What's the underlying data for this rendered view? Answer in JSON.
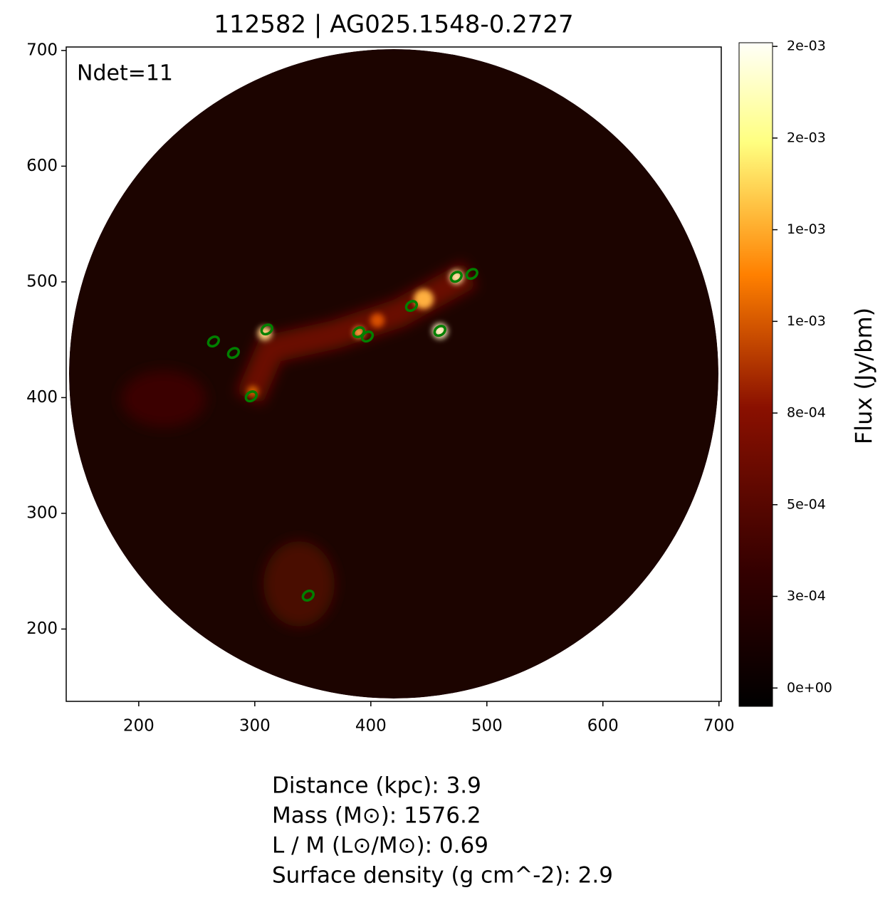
{
  "chart_data": {
    "type": "scatter",
    "title": "112582 | AG025.1548-0.2727",
    "annotation": "Ndet=11",
    "x": [
      473.6,
      487.1,
      435.0,
      459.5,
      389.6,
      397.0,
      310.4,
      264.4,
      281.6,
      296.9,
      346.0
    ],
    "values": [
      504.4,
      506.9,
      479.2,
      457.7,
      456.5,
      452.8,
      458.9,
      448.5,
      438.6,
      401.1,
      228.9
    ],
    "color": "#008000",
    "xlim": [
      137.5,
      702
    ],
    "ylim": [
      137.5,
      703
    ],
    "xticks": [
      200,
      300,
      400,
      500,
      600,
      700
    ],
    "yticks": [
      200,
      300,
      400,
      500,
      600,
      700
    ],
    "colorbar": {
      "label": "Flux (Jy/bm)",
      "lim": [
        -5e-05,
        0.00176
      ],
      "ticks": [
        {
          "value": 0,
          "label": "0e+00"
        },
        {
          "value": 0.00025,
          "label": "3e-04"
        },
        {
          "value": 0.0005,
          "label": "5e-04"
        },
        {
          "value": 0.00075,
          "label": "8e-04"
        },
        {
          "value": 0.001,
          "label": "1e-03"
        },
        {
          "value": 0.00125,
          "label": "1e-03"
        },
        {
          "value": 0.0015,
          "label": "2e-03"
        },
        {
          "value": 0.00175,
          "label": "2e-03"
        }
      ]
    },
    "footer": [
      "Distance (kpc): 3.9",
      "Mass (M⊙): 1576.2",
      "L / M (L⊙/M⊙): 0.69",
      "Surface density (g cm^-2): 2.9"
    ]
  }
}
